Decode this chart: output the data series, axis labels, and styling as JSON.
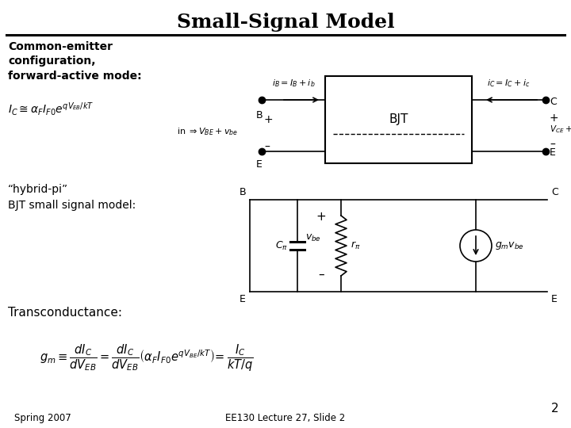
{
  "title": "Small-Signal Model",
  "title_fontsize": 18,
  "bg_color": "#ffffff",
  "text_color": "#000000",
  "line_color": "#000000",
  "slide_number": "2",
  "footer_left": "Spring 2007",
  "footer_center": "EE130 Lecture 27, Slide 2",
  "label_ce": "Common-emitter\nconfiguration,\nforward-active mode:",
  "label_hybrid": "“hybrid-pi”\nBJT small signal model:",
  "label_transconductance": "Transconductance:",
  "formula_ic": "$I_C \\cong \\alpha_F I_{F0} e^{qV_{EB}/kT}$",
  "formula_gm": "$g_m \\equiv \\dfrac{dI_C}{dV_{EB}} = \\dfrac{dI_C}{dV_{EB}} \\left(\\alpha_F I_{F0} e^{qV_{BE}/kT}\\right) = \\dfrac{I_C}{kT/q}$"
}
